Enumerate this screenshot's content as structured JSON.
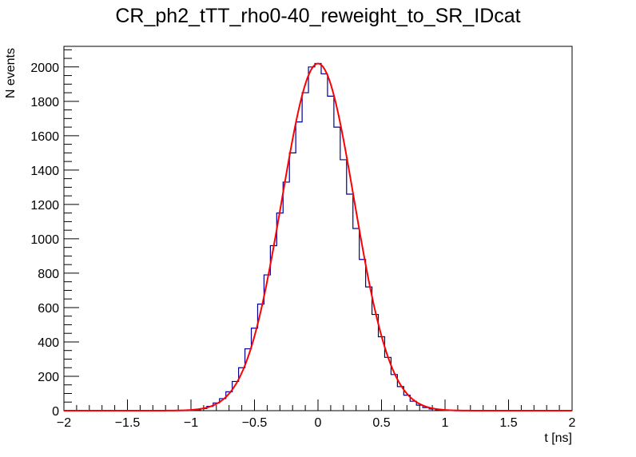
{
  "chart_data": {
    "type": "line",
    "title": "CR_ph2_tTT_rho0-40_reweight_to_SR_IDcat",
    "xlabel": "t [ns]",
    "ylabel": "N events",
    "xlim": [
      -2,
      2
    ],
    "ylim": [
      0,
      2120
    ],
    "x_ticks": [
      -2,
      -1.5,
      -1,
      -0.5,
      0,
      0.5,
      1,
      1.5,
      2
    ],
    "x_tick_labels": [
      "−2",
      "−1.5",
      "−1",
      "−0.5",
      "0",
      "0.5",
      "1",
      "1.5",
      "2"
    ],
    "y_ticks": [
      0,
      200,
      400,
      600,
      800,
      1000,
      1200,
      1400,
      1600,
      1800,
      2000
    ],
    "y_tick_labels": [
      "0",
      "200",
      "400",
      "600",
      "800",
      "1000",
      "1200",
      "1400",
      "1600",
      "1800",
      "2000"
    ],
    "grid": false,
    "series": [
      {
        "name": "histogram",
        "style": "step",
        "color": "#000099",
        "x": [
          -1.0,
          -0.95,
          -0.9,
          -0.85,
          -0.8,
          -0.75,
          -0.7,
          -0.65,
          -0.6,
          -0.55,
          -0.5,
          -0.45,
          -0.4,
          -0.35,
          -0.3,
          -0.25,
          -0.2,
          -0.15,
          -0.1,
          -0.05,
          0.0,
          0.05,
          0.1,
          0.15,
          0.2,
          0.25,
          0.3,
          0.35,
          0.4,
          0.45,
          0.5,
          0.55,
          0.6,
          0.65,
          0.7,
          0.75,
          0.8,
          0.85,
          0.9,
          0.95,
          1.0,
          1.05
        ],
        "values": [
          2,
          5,
          12,
          25,
          45,
          70,
          110,
          170,
          250,
          360,
          480,
          620,
          790,
          960,
          1150,
          1330,
          1500,
          1680,
          1850,
          2000,
          2020,
          1960,
          1830,
          1650,
          1460,
          1260,
          1060,
          880,
          720,
          560,
          430,
          310,
          210,
          140,
          90,
          55,
          32,
          18,
          10,
          5,
          3,
          1
        ]
      },
      {
        "name": "gaussian fit",
        "style": "line",
        "color": "#ff0000",
        "mean": 0.0,
        "sigma": 0.285,
        "amplitude": 2020
      }
    ]
  }
}
